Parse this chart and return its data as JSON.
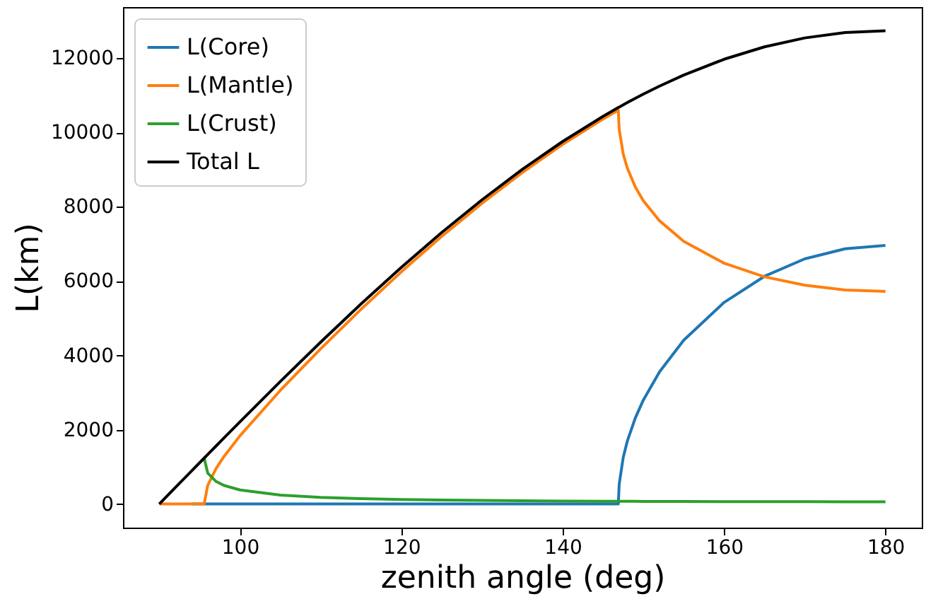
{
  "chart_data": {
    "type": "line",
    "xlabel": "zenith angle (deg)",
    "ylabel": "L(km)",
    "x": [
      90,
      92,
      94,
      95.56,
      96,
      97,
      98,
      100,
      105,
      110,
      115,
      120,
      125,
      130,
      135,
      140,
      145,
      146.89,
      147,
      147.5,
      148,
      149,
      150,
      152,
      155,
      160,
      165,
      170,
      175,
      180
    ],
    "series": [
      {
        "name": "L(Core)",
        "color": "#1f77b4",
        "values": [
          null,
          null,
          0,
          0,
          0,
          0,
          0,
          0,
          0,
          0,
          0,
          0,
          0,
          0,
          0,
          0,
          0,
          0,
          531,
          1253,
          1688,
          2318,
          2802,
          3558,
          4410,
          5427,
          6129,
          6599,
          6871,
          6960
        ]
      },
      {
        "name": "L(Mantle)",
        "color": "#ff7f0e",
        "values": [
          0,
          0,
          0,
          0,
          499,
          941,
          1273,
          1836,
          3058,
          4179,
          5241,
          6250,
          7203,
          8097,
          8925,
          9683,
          10364,
          10601,
          10084,
          9422,
          9047,
          8534,
          8163,
          7625,
          7072,
          6483,
          6117,
          5889,
          5763,
          5722
        ]
      },
      {
        "name": "L(Crust)",
        "color": "#2ca02c",
        "values": [
          null,
          null,
          null,
          1234,
          833,
          612,
          501,
          377,
          240,
          179,
          144,
          121,
          105,
          94,
          85,
          78,
          73,
          72,
          72,
          71,
          71,
          70,
          69,
          68,
          66,
          64,
          62,
          61,
          60,
          60
        ]
      },
      {
        "name": "Total L",
        "color": "#000000",
        "values": [
          0,
          445,
          889,
          1234,
          1332,
          1553,
          1773,
          2213,
          3298,
          4358,
          5385,
          6371,
          7308,
          8190,
          9010,
          9761,
          10438,
          10673,
          10686,
          10746,
          10806,
          10922,
          11035,
          11250,
          11548,
          11974,
          12308,
          12548,
          12694,
          12742
        ]
      }
    ],
    "xlim": [
      85.5,
      184.5
    ],
    "ylim": [
      -637,
      13379
    ],
    "xticks": [
      100,
      120,
      140,
      160,
      180
    ],
    "yticks": [
      0,
      2000,
      4000,
      6000,
      8000,
      10000,
      12000
    ],
    "legend": "top left",
    "grid": false
  }
}
